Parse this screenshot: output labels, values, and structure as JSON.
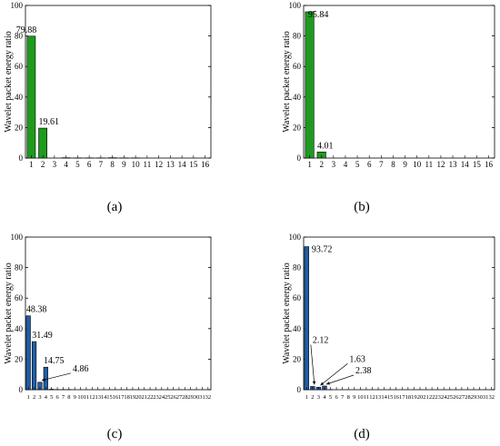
{
  "chart_data": [
    {
      "type": "bar",
      "panel": "(a)",
      "ylabel": "Wavelet packet energy ratio",
      "ylim": [
        0,
        100
      ],
      "yticks": [
        0,
        20,
        40,
        60,
        80,
        100
      ],
      "categories": [
        "1",
        "2",
        "3",
        "4",
        "5",
        "6",
        "7",
        "8",
        "9",
        "10",
        "11",
        "12",
        "13",
        "14",
        "15",
        "16"
      ],
      "values": [
        79.88,
        19.61,
        0,
        0.2,
        0.1,
        0.1,
        0.1,
        0.2,
        0.1,
        0.1,
        0,
        0,
        0,
        0,
        0,
        0
      ],
      "data_labels": [
        {
          "index": 0,
          "text": "79.88"
        },
        {
          "index": 1,
          "text": "19.61"
        }
      ],
      "color": "#1e9a1e",
      "grid": false
    },
    {
      "type": "bar",
      "panel": "(b)",
      "ylabel": "Wavelet packet energy ratio",
      "ylim": [
        0,
        100
      ],
      "yticks": [
        0,
        20,
        40,
        60,
        80,
        100
      ],
      "categories": [
        "1",
        "2",
        "3",
        "4",
        "5",
        "6",
        "7",
        "8",
        "9",
        "10",
        "11",
        "12",
        "13",
        "14",
        "15",
        "16"
      ],
      "values": [
        95.84,
        4.01,
        0,
        0,
        0,
        0,
        0,
        0,
        0,
        0,
        0,
        0,
        0,
        0,
        0,
        0
      ],
      "data_labels": [
        {
          "index": 0,
          "text": "95.84"
        },
        {
          "index": 1,
          "text": "4.01"
        }
      ],
      "color": "#1e9a1e",
      "grid": false
    },
    {
      "type": "bar",
      "panel": "(c)",
      "ylabel": "Wavelet packet energy ratio",
      "ylim": [
        0,
        100
      ],
      "yticks": [
        0,
        20,
        40,
        60,
        80,
        100
      ],
      "categories": [
        "1",
        "2",
        "3",
        "4",
        "5",
        "6",
        "7",
        "8",
        "9",
        "10",
        "11",
        "12",
        "13",
        "14",
        "15",
        "16",
        "17",
        "18",
        "19",
        "20",
        "21",
        "22",
        "23",
        "24",
        "25",
        "26",
        "27",
        "28",
        "29",
        "30",
        "31",
        "32"
      ],
      "values": [
        48.38,
        31.49,
        4.86,
        14.75,
        0.3,
        0.1,
        0.1,
        0.1,
        0,
        0,
        0,
        0,
        0,
        0,
        0,
        0,
        0,
        0,
        0,
        0,
        0,
        0,
        0,
        0,
        0,
        0,
        0,
        0,
        0,
        0,
        0,
        0
      ],
      "data_labels": [
        {
          "index": 0,
          "text": "48.38"
        },
        {
          "index": 1,
          "text": "31.49"
        },
        {
          "index": 3,
          "text": "14.75"
        },
        {
          "index": 2,
          "text": "4.86",
          "arrow": true
        }
      ],
      "color": "#1f5fa8",
      "grid": false
    },
    {
      "type": "bar",
      "panel": "(d)",
      "ylabel": "Wavelet packet energy ratio",
      "ylim": [
        0,
        100
      ],
      "yticks": [
        0,
        20,
        40,
        60,
        80,
        100
      ],
      "categories": [
        "1",
        "2",
        "3",
        "4",
        "5",
        "6",
        "7",
        "8",
        "9",
        "10",
        "11",
        "12",
        "13",
        "14",
        "15",
        "16",
        "17",
        "18",
        "19",
        "20",
        "21",
        "22",
        "23",
        "24",
        "25",
        "26",
        "27",
        "28",
        "29",
        "30",
        "31",
        "32"
      ],
      "values": [
        93.72,
        2.12,
        1.63,
        2.38,
        0.1,
        0,
        0,
        0,
        0,
        0,
        0,
        0,
        0,
        0,
        0,
        0,
        0,
        0,
        0,
        0,
        0,
        0,
        0,
        0,
        0,
        0,
        0,
        0,
        0,
        0,
        0,
        0
      ],
      "data_labels": [
        {
          "index": 0,
          "text": "93.72"
        },
        {
          "index": 1,
          "text": "2.12",
          "arrow": true
        },
        {
          "index": 2,
          "text": "1.63",
          "arrow": true
        },
        {
          "index": 3,
          "text": "2.38",
          "arrow": true
        }
      ],
      "color": "#1f5fa8",
      "grid": false
    }
  ]
}
